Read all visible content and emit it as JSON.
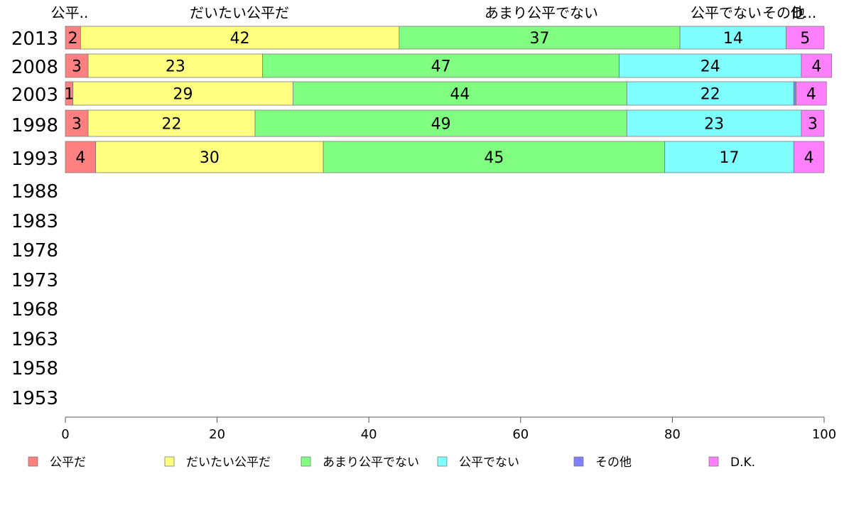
{
  "chart_data": {
    "type": "bar",
    "orientation": "horizontal",
    "stacked": true,
    "title": "",
    "xlabel": "",
    "ylabel": "",
    "xlim": [
      0,
      100
    ],
    "x_ticks": [
      0,
      20,
      40,
      60,
      80,
      100
    ],
    "categories": [
      "2013",
      "2008",
      "2003",
      "1998",
      "1993",
      "1988",
      "1983",
      "1978",
      "1973",
      "1968",
      "1963",
      "1958",
      "1953"
    ],
    "top_labels": [
      "公平..",
      "だいたい公平だ",
      "あまり公平でない",
      "公平でない",
      "その他",
      "D..."
    ],
    "series": [
      {
        "name": "公平だ",
        "color": "#ff8080",
        "values": [
          2,
          3,
          1,
          3,
          4,
          null,
          null,
          null,
          null,
          null,
          null,
          null,
          null
        ]
      },
      {
        "name": "だいたい公平だ",
        "color": "#ffff80",
        "values": [
          42,
          23,
          29,
          22,
          30,
          null,
          null,
          null,
          null,
          null,
          null,
          null,
          null
        ]
      },
      {
        "name": "あまり公平でない",
        "color": "#80ff80",
        "values": [
          37,
          47,
          44,
          49,
          45,
          null,
          null,
          null,
          null,
          null,
          null,
          null,
          null
        ]
      },
      {
        "name": "公平でない",
        "color": "#80ffff",
        "values": [
          14,
          24,
          22,
          23,
          17,
          null,
          null,
          null,
          null,
          null,
          null,
          null,
          null
        ]
      },
      {
        "name": "その他",
        "color": "#8080ff",
        "values": [
          0,
          0,
          0.3,
          0,
          0,
          null,
          null,
          null,
          null,
          null,
          null,
          null,
          null
        ]
      },
      {
        "name": "D.K.",
        "color": "#ff80ff",
        "values": [
          5,
          4,
          4,
          3,
          4,
          null,
          null,
          null,
          null,
          null,
          null,
          null,
          null
        ]
      }
    ],
    "legend_position": "bottom",
    "grid": false
  }
}
